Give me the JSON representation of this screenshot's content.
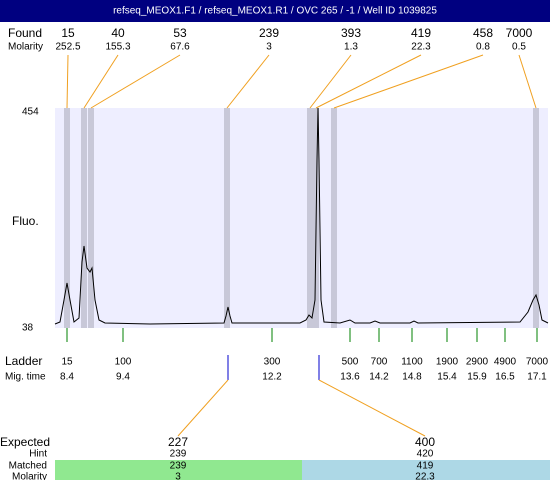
{
  "title": "refseq_MEOX1.F1 / refseq_MEOX1.R1 / OVC 265 / -1 / Well ID 1039825",
  "found": {
    "label": "Found",
    "molarity_label": "Molarity",
    "peaks": [
      {
        "size": 15,
        "molarity": 252.5
      },
      {
        "size": 40,
        "molarity": 155.3
      },
      {
        "size": 53,
        "molarity": 67.6
      },
      {
        "size": 239,
        "molarity": 3
      },
      {
        "size": 393,
        "molarity": 1.3
      },
      {
        "size": 419,
        "molarity": 22.3
      },
      {
        "size": 458,
        "molarity": 0.8
      },
      {
        "size": 7000,
        "molarity": 0.5
      }
    ]
  },
  "axis": {
    "top": 454,
    "bottom": 38,
    "label": "Fluo."
  },
  "ladder": {
    "label": "Ladder",
    "time_label": "Mig. time",
    "sizes": [
      15,
      100,
      300,
      500,
      700,
      1100,
      1900,
      2900,
      4900,
      7000
    ],
    "times": [
      8.4,
      9.4,
      12.2,
      13.6,
      14.2,
      14.8,
      15.4,
      15.9,
      16.5,
      17.1
    ]
  },
  "expected": {
    "label": "Expected",
    "hint_label": "Hint",
    "matched_label": "Matched",
    "molarity_label": "Molarity",
    "targets": [
      {
        "expected": 227,
        "hint": 239,
        "matched": 239,
        "molarity": 3
      },
      {
        "expected": 400,
        "hint": 420,
        "matched": 419,
        "molarity": 22.3
      }
    ]
  }
}
